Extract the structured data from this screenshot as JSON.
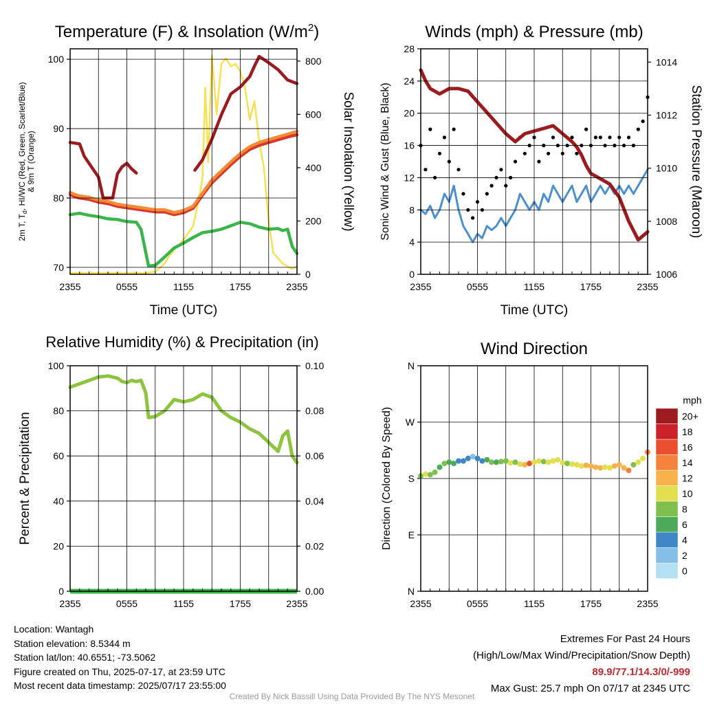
{
  "chart_data": [
    {
      "type": "line",
      "title": "Temperature (F) & Insolation (W/m²)",
      "xlabel": "Time (UTC)",
      "ylabel": "2m T, Td, HI/WC (Red, Green, Scarlet/Blue) & 9m T (Orange)",
      "ylabel_lines": [
        "2m T, T",
        "d",
        ", HI/WC (Red, Green, Scarlet/Blue)",
        "& 9m T (Orange)"
      ],
      "y2label": "Solar Insolation (Yellow)",
      "xticks": [
        "2355",
        "0555",
        "1155",
        "1755",
        "2355"
      ],
      "xlim": [
        0,
        24
      ],
      "ylim": [
        69,
        101.5
      ],
      "yticks": [
        70,
        80,
        90,
        100
      ],
      "y2lim": [
        0,
        846
      ],
      "y2ticks": [
        0,
        200,
        400,
        600,
        800
      ],
      "grid": true,
      "series": [
        {
          "name": "2m T",
          "color": "#d8362b",
          "x": [
            0,
            0.5,
            1,
            2,
            3,
            4,
            5,
            6,
            7,
            8,
            9,
            10,
            11,
            12,
            13,
            14,
            15,
            16,
            17,
            18,
            19,
            20,
            21,
            22,
            23,
            24
          ],
          "y": [
            80.5,
            80.2,
            80.0,
            79.8,
            79.4,
            79.2,
            78.8,
            78.6,
            78.4,
            78.2,
            78.0,
            78.0,
            77.6,
            77.9,
            78.5,
            80.4,
            82.2,
            83.5,
            84.8,
            86.0,
            87.0,
            87.6,
            88.0,
            88.4,
            88.8,
            89.1
          ]
        },
        {
          "name": "9m T",
          "color": "#f58a34",
          "x": [
            0,
            0.5,
            1,
            2,
            3,
            4,
            5,
            6,
            7,
            8,
            9,
            10,
            11,
            12,
            13,
            14,
            15,
            16,
            17,
            18,
            19,
            20,
            21,
            22,
            23,
            24
          ],
          "y": [
            80.8,
            80.5,
            80.3,
            80.1,
            79.7,
            79.5,
            79.1,
            78.9,
            78.7,
            78.5,
            78.3,
            78.3,
            77.9,
            78.2,
            78.8,
            80.7,
            82.6,
            83.9,
            85.2,
            86.4,
            87.4,
            88.0,
            88.4,
            88.8,
            89.2,
            89.6
          ]
        },
        {
          "name": "Td",
          "color": "#3ab54a",
          "x": [
            0,
            1,
            2,
            3,
            4,
            5,
            6,
            7,
            7.5,
            8.3,
            9,
            10,
            11,
            12,
            13,
            14,
            15,
            16,
            17,
            18,
            19,
            20,
            21,
            22,
            22.5,
            23,
            23.5,
            24
          ],
          "y": [
            77.6,
            77.8,
            77.5,
            77.3,
            77.0,
            76.9,
            76.6,
            76.5,
            75.5,
            70.2,
            70.3,
            71.5,
            72.8,
            73.5,
            74.3,
            75.0,
            75.2,
            75.5,
            76.0,
            76.5,
            76.3,
            75.8,
            75.5,
            75.6,
            75.3,
            75.5,
            73.0,
            72.0
          ]
        },
        {
          "name": "HI/WC",
          "color": "#9b1b1e",
          "x": [
            0,
            1,
            1.5,
            2.5,
            3,
            3.5,
            3.6,
            4.5,
            5,
            5.5,
            6,
            6.5,
            7
          ],
          "y": [
            88.0,
            87.8,
            86.0,
            84.0,
            83.0,
            80.0,
            80.0,
            80.0,
            83.5,
            84.5,
            85.0,
            84.2,
            83.6
          ]
        },
        {
          "name": "HI/WC",
          "color": "#9b1b1e",
          "x": [
            13.2,
            14,
            15,
            16,
            17,
            18,
            19,
            19.5,
            20,
            21,
            22,
            23,
            24
          ],
          "y": [
            84.0,
            85.5,
            88.5,
            92.0,
            95.0,
            96.0,
            97.5,
            99.0,
            100.4,
            99.5,
            98.5,
            97.0,
            96.5
          ]
        },
        {
          "name": "Solar Insolation",
          "color": "#f9e04e",
          "axis": "y2",
          "x": [
            0,
            4,
            8,
            9,
            10,
            10.5,
            11,
            12,
            13,
            13.5,
            14,
            14.3,
            14.6,
            15,
            15.5,
            16,
            16.5,
            17,
            17.5,
            18,
            18.5,
            19,
            19.5,
            20,
            20.5,
            21,
            21.5,
            22,
            22.5,
            23,
            23.5,
            24
          ],
          "y": [
            5,
            5,
            5,
            10,
            40,
            70,
            90,
            130,
            180,
            260,
            360,
            700,
            420,
            820,
            600,
            790,
            810,
            780,
            790,
            760,
            700,
            580,
            650,
            500,
            400,
            200,
            80,
            60,
            40,
            30,
            20,
            30
          ]
        }
      ]
    },
    {
      "type": "line",
      "title": "Winds (mph) & Pressure (mb)",
      "xlabel": "Time (UTC)",
      "ylabel": "Sonic Wind & Gust (Blue, Black)",
      "y2label": "Station Pressure (Maroon)",
      "xticks": [
        "2355",
        "0555",
        "1155",
        "1755",
        "2355"
      ],
      "xlim": [
        0,
        24
      ],
      "ylim": [
        0,
        28
      ],
      "yticks": [
        0,
        4,
        8,
        12,
        16,
        20,
        24,
        28
      ],
      "y2lim": [
        1006,
        1014.5
      ],
      "y2ticks": [
        1006,
        1008,
        1010,
        1012,
        1014
      ],
      "grid": true,
      "series": [
        {
          "name": "Sonic Wind",
          "color": "#4a90d0",
          "x": [
            0,
            0.5,
            1,
            1.5,
            2,
            2.5,
            3,
            3.5,
            4,
            4.5,
            5,
            5.5,
            6,
            6.5,
            7,
            7.5,
            8,
            8.5,
            9,
            9.5,
            10,
            10.5,
            11,
            11.5,
            12,
            12.5,
            13,
            13.5,
            14,
            14.5,
            15,
            15.5,
            16,
            16.5,
            17,
            17.5,
            18,
            18.5,
            19,
            19.5,
            20,
            20.5,
            21,
            21.5,
            22,
            22.5,
            23,
            23.5,
            24
          ],
          "y": [
            8,
            7.5,
            8.5,
            7,
            8,
            10,
            9,
            11,
            8,
            6,
            5,
            4,
            5,
            4.5,
            6,
            5.5,
            6,
            7,
            6,
            7,
            8,
            10,
            9,
            8,
            9,
            8,
            10,
            9,
            11,
            10,
            9,
            10,
            11,
            9,
            10,
            11,
            9,
            10,
            11,
            10,
            11,
            10,
            11,
            10,
            11,
            10,
            11,
            12,
            13
          ]
        },
        {
          "name": "Gust",
          "color": "#000000",
          "style": "dots",
          "x": [
            0,
            0.5,
            1,
            1.5,
            2,
            2.5,
            3,
            3.5,
            4,
            4.5,
            5,
            5.5,
            6,
            6.5,
            7,
            7.5,
            8,
            8.5,
            9,
            9.5,
            10,
            10.5,
            11,
            11.5,
            12,
            12.5,
            13,
            13.5,
            14,
            14.5,
            15,
            15.5,
            16,
            16.5,
            17,
            17.5,
            18,
            18.5,
            19,
            19.5,
            20,
            20.5,
            21,
            21.5,
            22,
            22.5,
            23,
            23.5,
            24
          ],
          "y": [
            16,
            13,
            18,
            12,
            15,
            17,
            14,
            18,
            13,
            10,
            8,
            7,
            9,
            8,
            10,
            11,
            12,
            13,
            11,
            12,
            14,
            17,
            15,
            16,
            17,
            14,
            16,
            15,
            17,
            16,
            15,
            16,
            17,
            15,
            16,
            18,
            16,
            17,
            17,
            16,
            17,
            16,
            17,
            16,
            17,
            16,
            18,
            19,
            22
          ]
        },
        {
          "name": "Station Pressure",
          "color": "#9b1b1e",
          "axis": "y2",
          "x": [
            0,
            0.5,
            1,
            2,
            3,
            4,
            5,
            6,
            7,
            8,
            9,
            10,
            11,
            12,
            13,
            14,
            15,
            16,
            16.5,
            17,
            17.5,
            18,
            19,
            20,
            21,
            22,
            23,
            24
          ],
          "y": [
            1013.7,
            1013.3,
            1013.0,
            1012.8,
            1013.0,
            1013.0,
            1012.9,
            1012.5,
            1012.1,
            1011.7,
            1011.3,
            1011.0,
            1011.3,
            1011.4,
            1011.5,
            1011.6,
            1011.3,
            1011.0,
            1010.8,
            1010.5,
            1010.1,
            1009.8,
            1009.6,
            1009.4,
            1008.9,
            1008.0,
            1007.3,
            1007.6
          ]
        }
      ]
    },
    {
      "type": "line",
      "title": "Relative Humidity (%) & Precipitation (in)",
      "xlabel": "",
      "ylabel": "Percent & Precipitation",
      "xticks": [
        "2355",
        "0555",
        "1155",
        "1755",
        "2355"
      ],
      "xlim": [
        0,
        24
      ],
      "ylim": [
        0,
        100
      ],
      "yticks": [
        0,
        20,
        40,
        60,
        80,
        100
      ],
      "y2lim": [
        0,
        0.1
      ],
      "y2ticks": [
        "0.00",
        "0.02",
        "0.04",
        "0.06",
        "0.08",
        "0.10"
      ],
      "grid": true,
      "series": [
        {
          "name": "Relative Humidity",
          "color": "#8cc43e",
          "x": [
            0,
            1,
            2,
            3,
            4,
            5,
            5.5,
            6,
            6.5,
            7,
            7.5,
            8,
            8.3,
            9,
            10,
            11,
            12,
            13,
            14,
            15,
            16,
            17,
            18,
            19,
            20,
            21,
            22,
            22.5,
            23,
            23.5,
            24
          ],
          "y": [
            90.5,
            92,
            93.5,
            95,
            95.5,
            94.5,
            93,
            92.5,
            93.5,
            93,
            93.5,
            88,
            77,
            77.5,
            80,
            85,
            84,
            85,
            87.5,
            86,
            80,
            77,
            75,
            72,
            70,
            66,
            62,
            69,
            71,
            60,
            57
          ]
        },
        {
          "name": "Precipitation",
          "color": "#3ab54a",
          "axis": "y2",
          "x": [
            0,
            24
          ],
          "y": [
            0,
            0
          ]
        }
      ]
    },
    {
      "type": "scatter",
      "title": "Wind Direction",
      "xlabel": "",
      "ylabel": "Direction (Colored By Speed)",
      "xticks": [
        "2355",
        "0555",
        "1155",
        "1755",
        "2355"
      ],
      "xlim": [
        0,
        24
      ],
      "yticks": [
        "N",
        "E",
        "S",
        "W",
        "N"
      ],
      "ylim_deg": [
        0,
        360
      ],
      "grid": true,
      "legend": {
        "title": "mph",
        "labels": [
          "0",
          "2",
          "4",
          "6",
          "8",
          "10",
          "12",
          "14",
          "16",
          "18",
          "20+"
        ],
        "colors": [
          "#b3e0f2",
          "#83bfe6",
          "#3f86c5",
          "#4caa5a",
          "#7fbf4b",
          "#e0df4e",
          "#f8b24a",
          "#f5823a",
          "#e9502e",
          "#cb2129",
          "#9b1b1e"
        ]
      },
      "x": [
        0,
        0.5,
        1,
        1.5,
        2,
        2.5,
        3,
        3.5,
        4,
        4.5,
        5,
        5.5,
        6,
        6.5,
        7,
        7.5,
        8,
        8.5,
        9,
        9.5,
        10,
        10.5,
        11,
        11.5,
        12,
        12.5,
        13,
        13.5,
        14,
        14.5,
        15,
        15.5,
        16,
        16.5,
        17,
        17.5,
        18,
        18.5,
        19,
        19.5,
        20,
        20.5,
        21,
        21.5,
        22,
        22.5,
        23,
        23.5,
        24
      ],
      "direction": [
        184,
        187,
        186,
        190,
        198,
        204,
        206,
        204,
        208,
        208,
        212,
        215,
        212,
        208,
        210,
        206,
        206,
        207,
        208,
        205,
        206,
        203,
        202,
        204,
        206,
        208,
        207,
        206,
        208,
        210,
        205,
        204,
        203,
        202,
        200,
        201,
        200,
        198,
        197,
        198,
        197,
        200,
        202,
        197,
        193,
        202,
        206,
        212,
        222
      ],
      "speed": [
        8,
        10,
        9,
        8,
        7,
        8,
        6,
        7,
        5,
        4,
        4,
        3,
        4,
        5,
        6,
        8,
        7,
        9,
        8,
        10,
        9,
        10,
        12,
        16,
        10,
        10,
        9,
        10,
        11,
        10,
        11,
        9,
        10,
        11,
        10,
        12,
        13,
        12,
        12,
        11,
        10,
        12,
        12,
        13,
        14,
        9,
        10,
        11,
        14
      ]
    }
  ],
  "info": {
    "location": "Location: Wantagh",
    "elevation": "Station elevation: 8.5344 m",
    "latlon": "Station lat/lon: 40.6551; -73.5062",
    "created": "Figure created on Thu, 2025-07-17, at 23:59 UTC",
    "recent": "Most recent data timestamp: 2025/07/17 23:55:00"
  },
  "extremes": {
    "title": "Extremes For Past 24 Hours",
    "subtitle": "(High/Low/Max Wind/Precipitation/Snow Depth)",
    "values": "89.9/77.1/14.3/0/-999",
    "gust": "Max Gust: 25.7 mph On 07/17 at 2345 UTC"
  },
  "credit": "Created By Nick Bassill Using Data Provided By The NYS Mesonet"
}
